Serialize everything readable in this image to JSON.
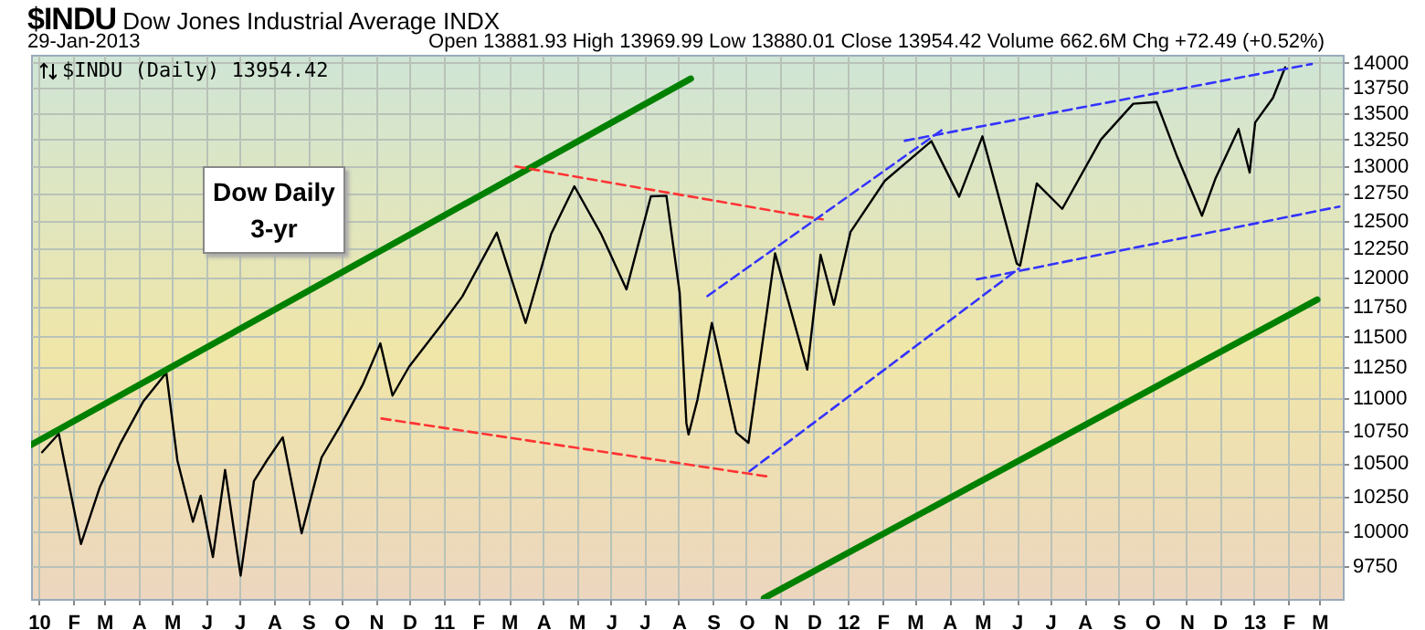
{
  "chart_data": {
    "type": "line",
    "title": "$INDU",
    "subtitle": "Dow Jones Industrial Average INDX",
    "annotations": [
      "29-Jan-2013",
      "Open 13881.93 High 13969.99 Low 13880.01 Close 13954.42 Volume 662.6M Chg +72.49 (+0.52%)",
      "$INDU (Daily) 13954.42",
      "Dow Daily 3-yr"
    ],
    "log": "y",
    "grid": true,
    "xlim": [
      "2009-12-25",
      "2013-03-22"
    ],
    "ylim": [
      9525,
      14080
    ],
    "yticks": [
      9750,
      10000,
      10250,
      10500,
      10750,
      11000,
      11250,
      11500,
      11750,
      12000,
      12250,
      12500,
      12750,
      13000,
      13250,
      13500,
      13750,
      14000
    ],
    "xticks": [
      {
        "value": "2010-01-01",
        "label": "10"
      },
      {
        "value": "2010-02-01",
        "label": "F"
      },
      {
        "value": "2010-03-01",
        "label": "M"
      },
      {
        "value": "2010-04-01",
        "label": "A"
      },
      {
        "value": "2010-05-01",
        "label": "M"
      },
      {
        "value": "2010-06-01",
        "label": "J"
      },
      {
        "value": "2010-07-01",
        "label": "J"
      },
      {
        "value": "2010-08-01",
        "label": "A"
      },
      {
        "value": "2010-09-01",
        "label": "S"
      },
      {
        "value": "2010-10-01",
        "label": "O"
      },
      {
        "value": "2010-11-01",
        "label": "N"
      },
      {
        "value": "2010-12-01",
        "label": "D"
      },
      {
        "value": "2011-01-01",
        "label": "11"
      },
      {
        "value": "2011-02-01",
        "label": "F"
      },
      {
        "value": "2011-03-01",
        "label": "M"
      },
      {
        "value": "2011-04-01",
        "label": "A"
      },
      {
        "value": "2011-05-01",
        "label": "M"
      },
      {
        "value": "2011-06-01",
        "label": "J"
      },
      {
        "value": "2011-07-01",
        "label": "J"
      },
      {
        "value": "2011-08-01",
        "label": "A"
      },
      {
        "value": "2011-09-01",
        "label": "S"
      },
      {
        "value": "2011-10-01",
        "label": "O"
      },
      {
        "value": "2011-11-01",
        "label": "N"
      },
      {
        "value": "2011-12-01",
        "label": "D"
      },
      {
        "value": "2012-01-01",
        "label": "12"
      },
      {
        "value": "2012-02-01",
        "label": "F"
      },
      {
        "value": "2012-03-01",
        "label": "M"
      },
      {
        "value": "2012-04-01",
        "label": "A"
      },
      {
        "value": "2012-05-01",
        "label": "M"
      },
      {
        "value": "2012-06-01",
        "label": "J"
      },
      {
        "value": "2012-07-01",
        "label": "J"
      },
      {
        "value": "2012-08-01",
        "label": "A"
      },
      {
        "value": "2012-09-01",
        "label": "S"
      },
      {
        "value": "2012-10-01",
        "label": "O"
      },
      {
        "value": "2012-11-01",
        "label": "N"
      },
      {
        "value": "2012-12-01",
        "label": "D"
      },
      {
        "value": "2013-01-01",
        "label": "13"
      },
      {
        "value": "2013-02-01",
        "label": "F"
      },
      {
        "value": "2013-03-01",
        "label": "M"
      }
    ],
    "series": [
      {
        "color": "#000000",
        "line_style": "solid",
        "x": [
          "2010-01-04",
          "2010-01-19",
          "2010-02-08",
          "2010-02-25",
          "2010-03-15",
          "2010-04-05",
          "2010-04-26",
          "2010-05-06",
          "2010-05-20",
          "2010-05-27",
          "2010-06-07",
          "2010-06-18",
          "2010-07-02",
          "2010-07-14",
          "2010-07-26",
          "2010-08-09",
          "2010-08-26",
          "2010-09-13",
          "2010-09-30",
          "2010-10-20",
          "2010-11-05",
          "2010-11-16",
          "2010-12-01",
          "2010-12-29",
          "2011-01-18",
          "2011-02-18",
          "2011-03-16",
          "2011-04-08",
          "2011-04-29",
          "2011-05-23",
          "2011-06-15",
          "2011-07-07",
          "2011-07-21",
          "2011-08-02",
          "2011-08-08",
          "2011-08-10",
          "2011-08-18",
          "2011-08-31",
          "2011-09-22",
          "2011-10-03",
          "2011-10-27",
          "2011-11-25",
          "2011-12-07",
          "2011-12-19",
          "2012-01-03",
          "2012-02-03",
          "2012-03-16",
          "2012-04-10",
          "2012-05-01",
          "2012-06-01",
          "2012-06-04",
          "2012-06-19",
          "2012-07-12",
          "2012-08-16",
          "2012-09-14",
          "2012-10-05",
          "2012-10-23",
          "2012-11-15",
          "2012-11-27",
          "2012-12-18",
          "2012-12-28",
          "2013-01-02",
          "2013-01-18",
          "2013-01-29"
        ],
        "values": [
          10584,
          10725,
          9908,
          10321,
          10642,
          10974,
          11205,
          10520,
          10068,
          10258,
          9816,
          10450,
          9686,
          10366,
          10525,
          10698,
          9985,
          10544,
          10788,
          11107,
          11444,
          11023,
          11255,
          11585,
          11837,
          12391,
          11613,
          12380,
          12811,
          12381,
          11897,
          12719,
          12724,
          11866,
          10809,
          10719,
          10990,
          11613,
          10733,
          10655,
          12209,
          11231,
          12196,
          11766,
          12397,
          12862,
          13233,
          12716,
          13279,
          12119,
          12101,
          12837,
          12605,
          13250,
          13593,
          13610,
          13103,
          12543,
          12878,
          13350,
          12938,
          13412,
          13650,
          13954
        ]
      },
      {
        "color": "#008000",
        "line_style": "solid",
        "x": [
          "2009-12-25",
          "2011-08-12"
        ],
        "values": [
          10640,
          13841
        ]
      },
      {
        "color": "#008000",
        "line_style": "solid",
        "x": [
          "2011-10-17",
          "2013-02-27"
        ],
        "values": [
          9530,
          11810
        ]
      },
      {
        "color": "#ff3333",
        "line_style": "dashed",
        "x": [
          "2011-03-07",
          "2011-12-09"
        ],
        "values": [
          12996,
          12510
        ]
      },
      {
        "color": "#ff3333",
        "line_style": "dashed",
        "x": [
          "2010-11-06",
          "2011-10-20"
        ],
        "values": [
          10843,
          10401
        ]
      },
      {
        "color": "#3333ff",
        "line_style": "dashed",
        "x": [
          "2011-08-27",
          "2012-03-28"
        ],
        "values": [
          11840,
          13359
        ]
      },
      {
        "color": "#3333ff",
        "line_style": "dashed",
        "x": [
          "2012-02-21",
          "2013-02-22"
        ],
        "values": [
          13237,
          13987
        ]
      },
      {
        "color": "#3333ff",
        "line_style": "dashed",
        "x": [
          "2011-10-04",
          "2012-06-03"
        ],
        "values": [
          10441,
          12077
        ]
      },
      {
        "color": "#3333ff",
        "line_style": "dashed",
        "x": [
          "2012-04-26",
          "2013-03-19"
        ],
        "values": [
          11982,
          12626
        ]
      }
    ]
  }
}
